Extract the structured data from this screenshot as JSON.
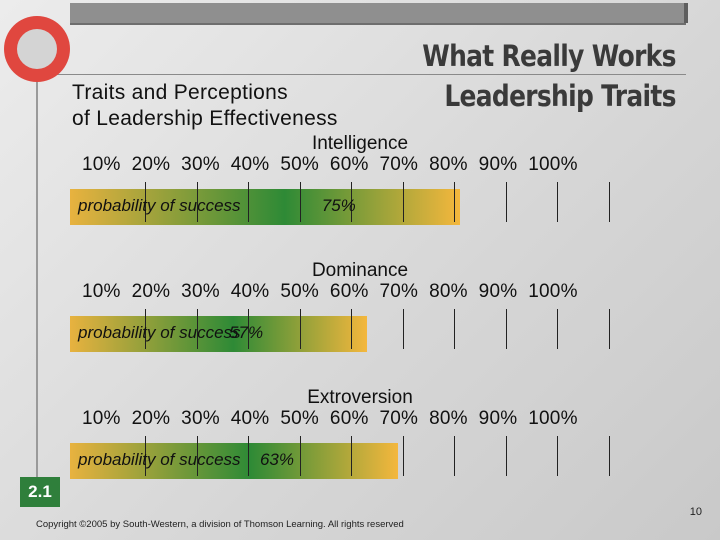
{
  "header": {
    "title_line1": "What Really Works",
    "title_line2": "Leadership Traits",
    "subtitle_line1": "Traits and Perceptions",
    "subtitle_line2": "of Leadership Effectiveness"
  },
  "colors": {
    "bar_start": "#e8b23f",
    "bar_mid": "#2e8a36",
    "bar_end": "#f4b73d",
    "slide_badge": "#2f7f3b",
    "logo": "#e0473f"
  },
  "chart_data": [
    {
      "type": "bar",
      "title": "Intelligence",
      "tick_labels": "10%  20%  30%  40%  50%  60%  70%  80%  90%  100%",
      "series_label": "probability of success",
      "value": 75,
      "value_label": "75%"
    },
    {
      "type": "bar",
      "title": "Dominance",
      "tick_labels": "10%  20%  30%  40%  50%  60%  70%  80%  90%  100%",
      "series_label": "probability of success",
      "value": 57,
      "value_label": "57%"
    },
    {
      "type": "bar",
      "title": "Extroversion",
      "tick_labels": "10%  20%  30%  40%  50%  60%  70%  80%  90%  100%",
      "series_label": "probability of success",
      "value": 63,
      "value_label": "63%"
    }
  ],
  "footer": {
    "slide_badge": "2.1",
    "copyright": "Copyright ©2005 by South-Western, a division of Thomson Learning. All rights reserved",
    "page_number": "10"
  }
}
